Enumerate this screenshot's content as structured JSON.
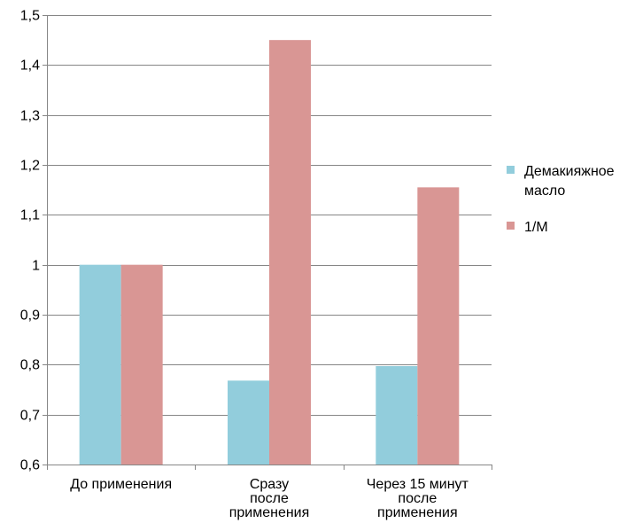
{
  "chart_data": {
    "type": "bar",
    "categories": [
      [
        "До применения"
      ],
      [
        "Сразу",
        "после",
        "применения"
      ],
      [
        "Через 15 минут",
        "после",
        "применения"
      ]
    ],
    "series": [
      {
        "name": [
          "Демакияжное",
          "масло"
        ],
        "color": "#92cddc",
        "values": [
          1.0,
          0.768,
          0.797
        ]
      },
      {
        "name": [
          "1/M"
        ],
        "color": "#d99694",
        "values": [
          1.0,
          1.45,
          1.155
        ]
      }
    ],
    "yticks": [
      "0,6",
      "0,7",
      "0,8",
      "0,9",
      "1",
      "1,1",
      "1,2",
      "1,3",
      "1,4",
      "1,5"
    ],
    "ylim": [
      0.6,
      1.5
    ],
    "grid": true,
    "legend_position": "right",
    "title": "",
    "xlabel": "",
    "ylabel": ""
  }
}
